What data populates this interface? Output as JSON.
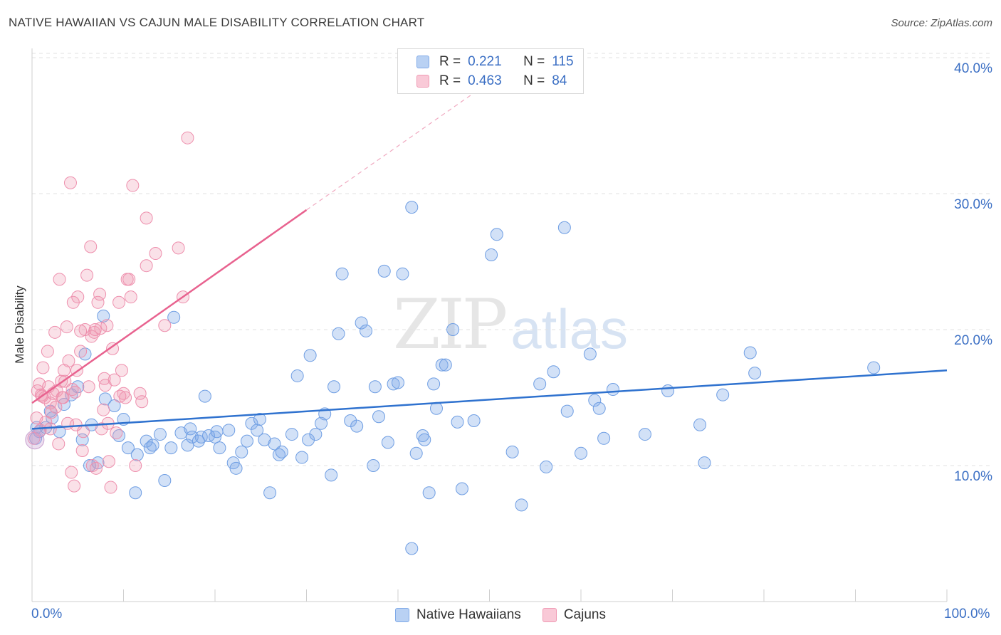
{
  "title": "NATIVE HAWAIIAN VS CAJUN MALE DISABILITY CORRELATION CHART",
  "source": "Source: ZipAtlas.com",
  "watermark": {
    "zip": "ZIP",
    "atlas": "atlas"
  },
  "colors": {
    "blue": "#7fa9e8",
    "blue_line": "#2f72cf",
    "pink": "#f09ab4",
    "pink_line": "#e8628f",
    "tick_label": "#3b6fc4"
  },
  "legend_top": {
    "rows": [
      {
        "r_label": "R =",
        "r_value": "0.221",
        "n_label": "N =",
        "n_value": "115"
      },
      {
        "r_label": "R =",
        "r_value": "0.463",
        "n_label": "N =",
        "n_value": "84"
      }
    ]
  },
  "legend_bottom": {
    "items": [
      "Native Hawaiians",
      "Cajuns"
    ]
  },
  "chart_data": {
    "type": "scatter",
    "title": "NATIVE HAWAIIAN VS CAJUN MALE DISABILITY CORRELATION CHART",
    "xlabel": "",
    "ylabel": "Male Disability",
    "xlim": [
      0,
      100
    ],
    "ylim": [
      0,
      42
    ],
    "x_tick_labels": [
      "0.0%",
      "100.0%"
    ],
    "y_ticks": [
      10,
      20,
      30,
      40
    ],
    "y_tick_labels": [
      "10.0%",
      "20.0%",
      "30.0%",
      "40.0%"
    ],
    "grid": true,
    "legend_position": "top-center",
    "series": [
      {
        "name": "Native Hawaiians",
        "trend": {
          "x0": 0,
          "y0": 12.7,
          "x1": 100,
          "y1": 17.0
        },
        "points": [
          [
            0.4,
            12.0
          ],
          [
            0.8,
            12.5
          ],
          [
            1.5,
            12.8
          ],
          [
            2.2,
            13.5
          ],
          [
            2.0,
            14.0
          ],
          [
            3.0,
            12.5
          ],
          [
            3.5,
            14.5
          ],
          [
            4.3,
            15.2
          ],
          [
            5.5,
            11.9
          ],
          [
            6.5,
            13.0
          ],
          [
            5.0,
            15.8
          ],
          [
            6.3,
            10.0
          ],
          [
            7.2,
            10.2
          ],
          [
            7.8,
            21.0
          ],
          [
            8.0,
            14.9
          ],
          [
            9.5,
            12.2
          ],
          [
            10.5,
            11.3
          ],
          [
            10.0,
            13.4
          ],
          [
            11.3,
            8.0
          ],
          [
            11.5,
            10.8
          ],
          [
            12.5,
            11.8
          ],
          [
            12.9,
            11.3
          ],
          [
            13.2,
            11.5
          ],
          [
            14.0,
            12.3
          ],
          [
            14.5,
            8.9
          ],
          [
            15.2,
            11.3
          ],
          [
            15.5,
            20.9
          ],
          [
            16.3,
            12.4
          ],
          [
            17.0,
            11.5
          ],
          [
            17.5,
            12.1
          ],
          [
            17.3,
            12.7
          ],
          [
            18.2,
            11.8
          ],
          [
            18.5,
            12.1
          ],
          [
            18.9,
            15.1
          ],
          [
            19.3,
            12.2
          ],
          [
            20.0,
            12.1
          ],
          [
            20.5,
            11.3
          ],
          [
            20.2,
            12.5
          ],
          [
            21.5,
            12.6
          ],
          [
            22.0,
            10.2
          ],
          [
            22.3,
            9.8
          ],
          [
            22.9,
            11.0
          ],
          [
            23.5,
            11.8
          ],
          [
            24.0,
            13.1
          ],
          [
            24.6,
            12.6
          ],
          [
            24.9,
            13.4
          ],
          [
            25.4,
            11.9
          ],
          [
            26.0,
            8.0
          ],
          [
            26.5,
            11.6
          ],
          [
            27.0,
            10.8
          ],
          [
            27.3,
            11.0
          ],
          [
            28.4,
            12.3
          ],
          [
            29.0,
            16.6
          ],
          [
            29.5,
            10.6
          ],
          [
            30.2,
            11.9
          ],
          [
            30.4,
            18.1
          ],
          [
            31.0,
            12.3
          ],
          [
            31.6,
            13.1
          ],
          [
            32.0,
            13.8
          ],
          [
            32.7,
            9.3
          ],
          [
            33.0,
            15.8
          ],
          [
            33.5,
            19.7
          ],
          [
            33.9,
            24.1
          ],
          [
            34.8,
            13.3
          ],
          [
            35.5,
            12.9
          ],
          [
            36.0,
            20.5
          ],
          [
            36.5,
            19.9
          ],
          [
            37.3,
            10.0
          ],
          [
            37.5,
            15.8
          ],
          [
            37.9,
            13.6
          ],
          [
            38.5,
            24.3
          ],
          [
            38.9,
            11.7
          ],
          [
            39.5,
            16.0
          ],
          [
            40.0,
            16.1
          ],
          [
            40.5,
            24.1
          ],
          [
            41.5,
            3.9
          ],
          [
            41.5,
            29.0
          ],
          [
            42.0,
            10.9
          ],
          [
            42.7,
            12.2
          ],
          [
            42.9,
            11.9
          ],
          [
            43.4,
            8.0
          ],
          [
            43.9,
            16.0
          ],
          [
            44.2,
            14.2
          ],
          [
            44.8,
            17.4
          ],
          [
            45.2,
            17.4
          ],
          [
            46.0,
            20.0
          ],
          [
            46.5,
            13.2
          ],
          [
            47.0,
            8.3
          ],
          [
            48.3,
            13.3
          ],
          [
            50.2,
            25.5
          ],
          [
            50.8,
            27.0
          ],
          [
            52.5,
            11.0
          ],
          [
            53.5,
            7.1
          ],
          [
            55.5,
            16.0
          ],
          [
            56.2,
            9.9
          ],
          [
            57.0,
            16.9
          ],
          [
            58.2,
            27.5
          ],
          [
            58.5,
            14.0
          ],
          [
            60.0,
            10.9
          ],
          [
            61.0,
            18.2
          ],
          [
            61.5,
            14.8
          ],
          [
            62.0,
            14.2
          ],
          [
            62.5,
            12.0
          ],
          [
            63.5,
            15.6
          ],
          [
            67.0,
            12.3
          ],
          [
            69.5,
            15.5
          ],
          [
            73.0,
            13.0
          ],
          [
            73.5,
            10.2
          ],
          [
            75.5,
            15.2
          ],
          [
            78.5,
            18.3
          ],
          [
            79.0,
            16.8
          ],
          [
            92.0,
            17.2
          ],
          [
            0.5,
            12.8
          ],
          [
            9.0,
            14.4
          ],
          [
            5.8,
            18.2
          ]
        ]
      },
      {
        "name": "Cajuns",
        "trend": {
          "x0": 0,
          "y0": 14.6,
          "x1": 30,
          "y1": 28.8
        },
        "trend_dashed": {
          "x0": 30,
          "y0": 28.8,
          "x1": 50,
          "y1": 38.2
        },
        "points": [
          [
            0.2,
            12.0
          ],
          [
            0.5,
            13.5
          ],
          [
            0.6,
            15.5
          ],
          [
            0.8,
            16.0
          ],
          [
            1.0,
            15.2
          ],
          [
            1.2,
            17.2
          ],
          [
            1.4,
            15.0
          ],
          [
            1.5,
            13.2
          ],
          [
            1.8,
            15.8
          ],
          [
            2.0,
            14.6
          ],
          [
            2.0,
            12.7
          ],
          [
            2.3,
            15.3
          ],
          [
            2.5,
            19.8
          ],
          [
            2.7,
            15.5
          ],
          [
            2.9,
            11.6
          ],
          [
            3.0,
            23.7
          ],
          [
            3.2,
            16.2
          ],
          [
            3.4,
            15.0
          ],
          [
            3.5,
            17.0
          ],
          [
            3.6,
            16.2
          ],
          [
            3.8,
            20.2
          ],
          [
            3.9,
            13.1
          ],
          [
            4.0,
            17.7
          ],
          [
            4.2,
            30.8
          ],
          [
            4.3,
            9.5
          ],
          [
            4.4,
            15.6
          ],
          [
            4.5,
            22.0
          ],
          [
            4.6,
            8.5
          ],
          [
            4.8,
            13.0
          ],
          [
            4.9,
            17.0
          ],
          [
            5.0,
            22.4
          ],
          [
            5.3,
            18.4
          ],
          [
            5.5,
            11.1
          ],
          [
            5.6,
            12.5
          ],
          [
            5.8,
            20.0
          ],
          [
            6.0,
            24.0
          ],
          [
            6.2,
            15.8
          ],
          [
            6.4,
            26.1
          ],
          [
            6.5,
            19.5
          ],
          [
            6.6,
            10.0
          ],
          [
            6.8,
            19.8
          ],
          [
            7.0,
            9.8
          ],
          [
            7.2,
            22.0
          ],
          [
            7.4,
            22.6
          ],
          [
            7.5,
            20.1
          ],
          [
            7.6,
            12.7
          ],
          [
            7.8,
            14.1
          ],
          [
            8.0,
            15.9
          ],
          [
            8.2,
            20.3
          ],
          [
            8.4,
            10.3
          ],
          [
            8.6,
            8.4
          ],
          [
            8.8,
            18.6
          ],
          [
            9.0,
            16.3
          ],
          [
            9.2,
            12.4
          ],
          [
            9.5,
            22.0
          ],
          [
            9.8,
            17.0
          ],
          [
            10.0,
            15.3
          ],
          [
            10.2,
            15.0
          ],
          [
            10.4,
            23.7
          ],
          [
            10.6,
            23.7
          ],
          [
            10.8,
            22.4
          ],
          [
            11.0,
            30.6
          ],
          [
            11.3,
            10.0
          ],
          [
            11.8,
            15.3
          ],
          [
            12.0,
            14.7
          ],
          [
            12.5,
            24.7
          ],
          [
            12.5,
            28.2
          ],
          [
            13.5,
            25.6
          ],
          [
            14.5,
            20.3
          ],
          [
            16.0,
            26.0
          ],
          [
            16.5,
            22.4
          ],
          [
            17.0,
            34.1
          ],
          [
            1.1,
            15.1
          ],
          [
            2.6,
            14.3
          ],
          [
            5.3,
            19.9
          ],
          [
            3.3,
            15.0
          ],
          [
            1.7,
            18.4
          ],
          [
            0.9,
            12.6
          ],
          [
            6.9,
            20.0
          ],
          [
            9.6,
            15.1
          ],
          [
            8.3,
            13.1
          ],
          [
            4.7,
            15.4
          ],
          [
            2.1,
            13.9
          ],
          [
            7.9,
            16.4
          ]
        ]
      }
    ]
  }
}
